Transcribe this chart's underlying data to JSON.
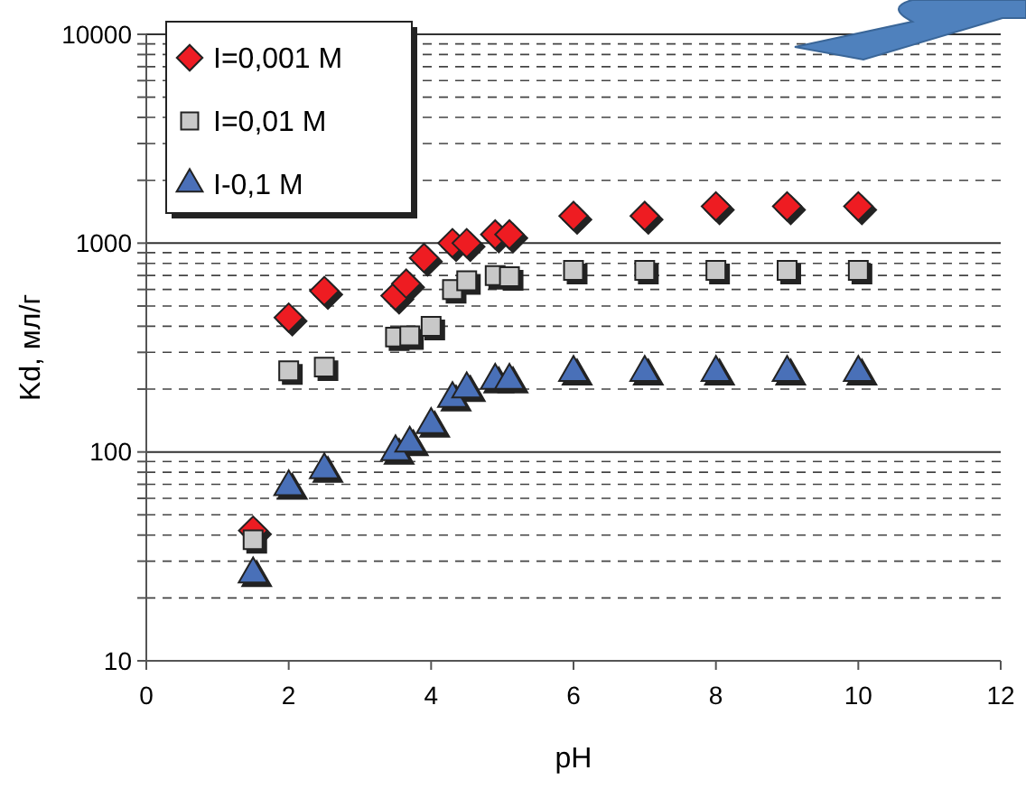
{
  "chart_data": {
    "type": "scatter",
    "xlabel": "pH",
    "ylabel": "Kd, мл/г",
    "log": "y",
    "grid": "y",
    "legend": "top left",
    "xlim": [
      0,
      12
    ],
    "xticks": [
      0,
      2,
      4,
      6,
      8,
      10,
      12
    ],
    "ylim": [
      10,
      10000
    ],
    "yticks": [
      10,
      100,
      1000,
      10000
    ],
    "series": [
      {
        "name": "I=0,001 M",
        "color": "#ee1c24",
        "marker": "diamond",
        "x": [
          1.5,
          2,
          2.5,
          3.5,
          3.65,
          3.9,
          4.3,
          4.5,
          4.9,
          5.1,
          6,
          7,
          8,
          9,
          10
        ],
        "values": [
          42,
          440,
          590,
          560,
          640,
          850,
          1000,
          1000,
          1100,
          1100,
          1350,
          1350,
          1500,
          1500,
          1500
        ]
      },
      {
        "name": "I=0,01 M",
        "color": "#c8c8c8",
        "marker": "square",
        "x": [
          1.5,
          2,
          2.5,
          3.5,
          3.7,
          4,
          4.3,
          4.5,
          4.9,
          5.1,
          6,
          7,
          8,
          9,
          10
        ],
        "values": [
          38,
          245,
          255,
          355,
          360,
          400,
          600,
          660,
          700,
          690,
          740,
          740,
          740,
          740,
          740
        ]
      },
      {
        "name": "I-0,1 M",
        "color": "#4a6fb8",
        "marker": "triangle",
        "x": [
          1.5,
          2,
          2.5,
          3.5,
          3.7,
          4,
          4.3,
          4.5,
          4.9,
          5.1,
          6,
          7,
          8,
          9,
          10
        ],
        "values": [
          26,
          68,
          82,
          100,
          110,
          135,
          180,
          200,
          220,
          220,
          240,
          240,
          240,
          240,
          240
        ]
      }
    ]
  }
}
